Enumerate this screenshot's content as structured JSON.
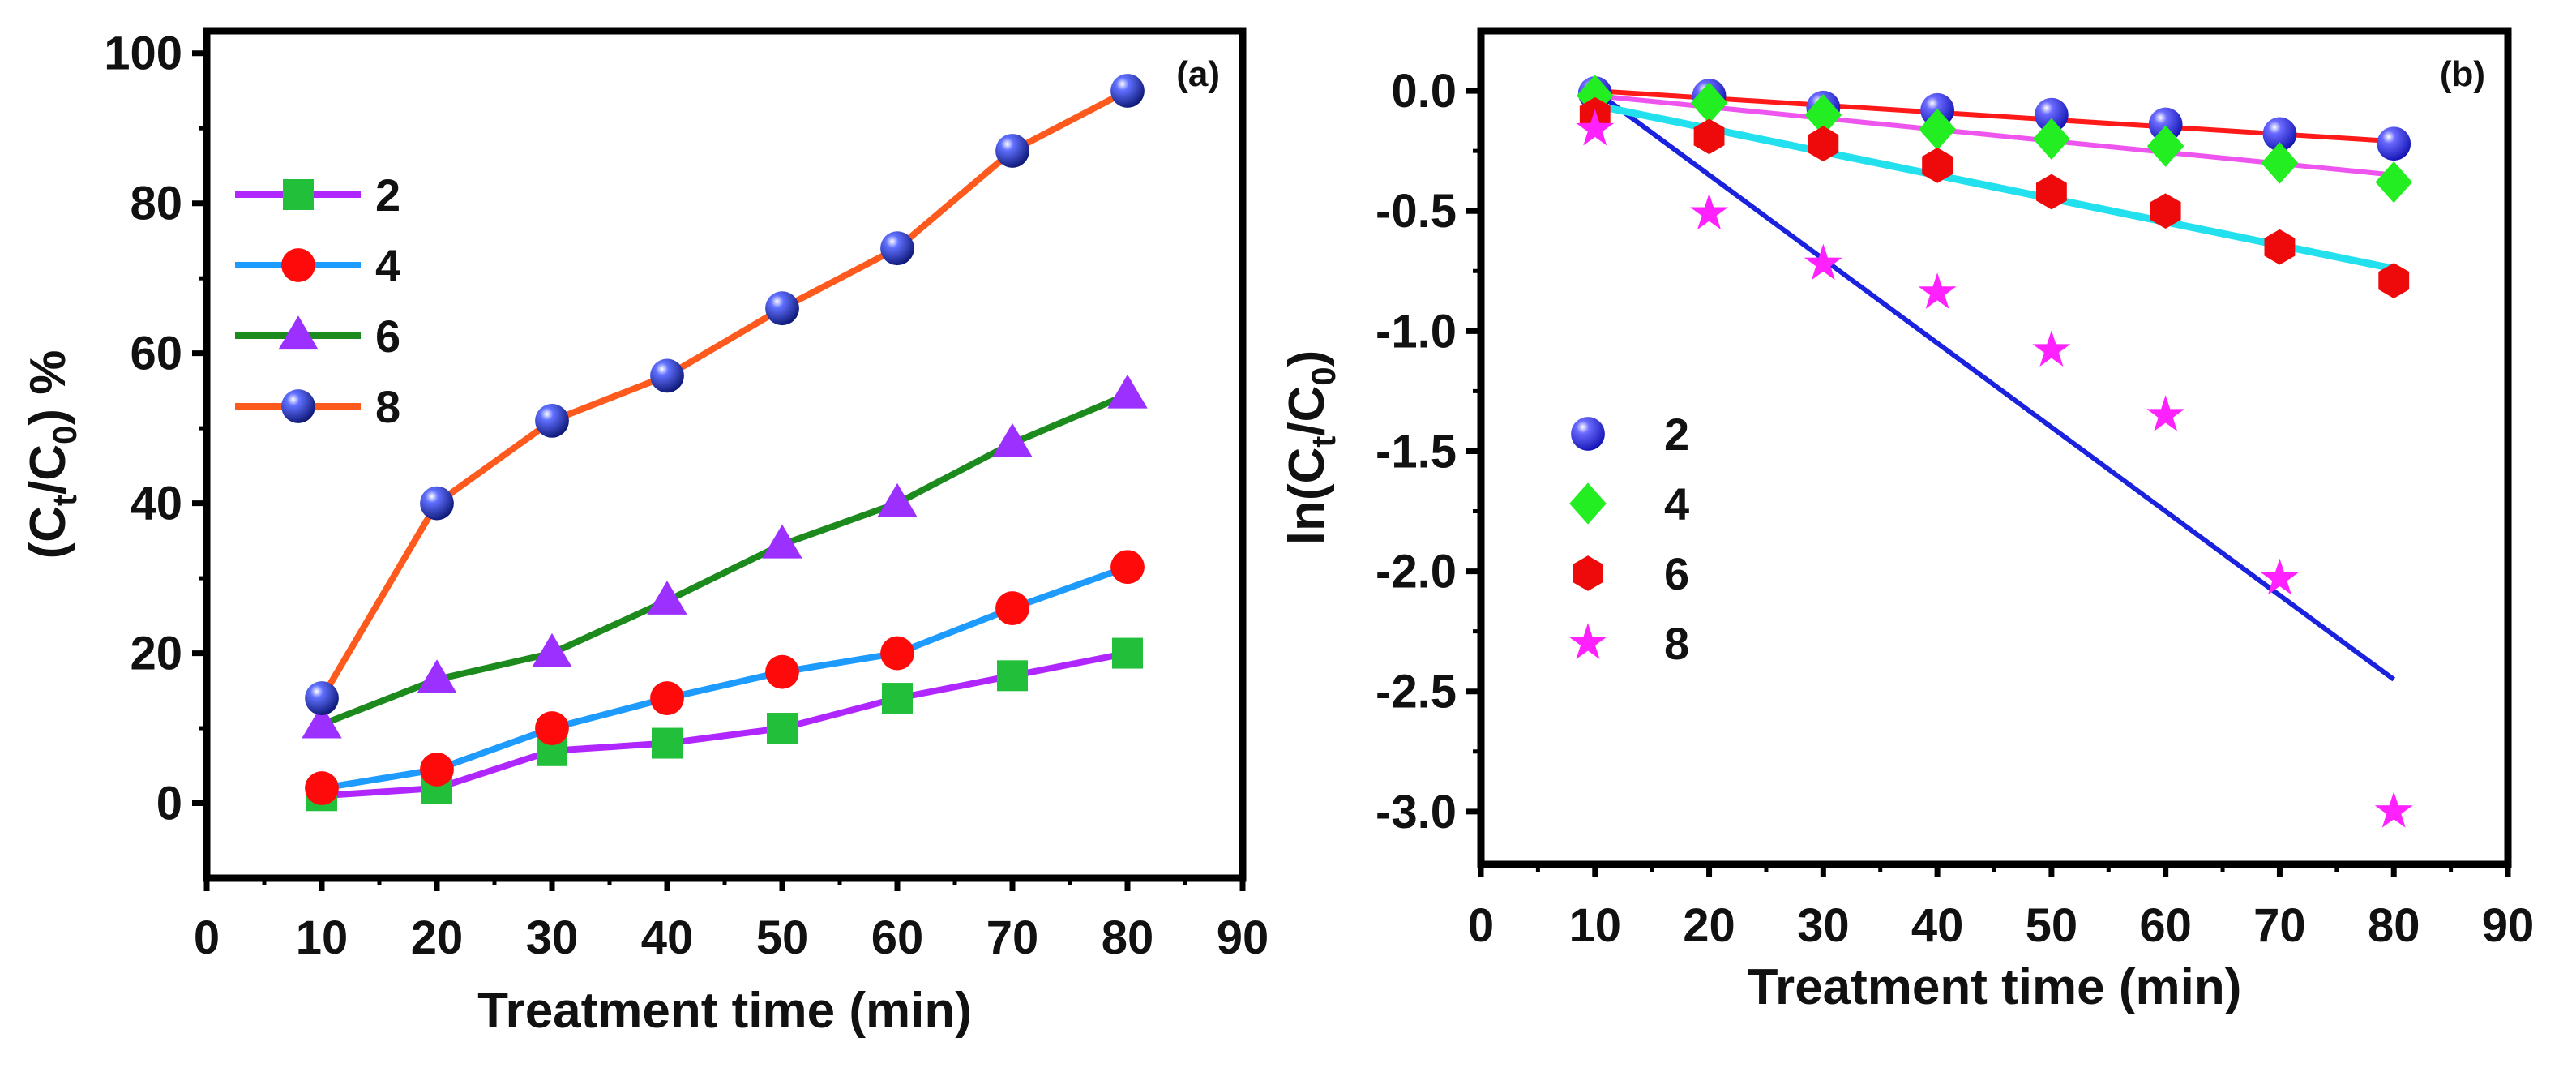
{
  "chart_data": [
    {
      "id": "a",
      "type": "line",
      "panel_label": "(a)",
      "xlabel": "Treatment time (min)",
      "ylabel_parts": [
        "(C",
        "t",
        "/C",
        "0",
        ") %"
      ],
      "xlim": [
        0,
        90
      ],
      "ylim": [
        -10,
        103
      ],
      "xticks": [
        "0",
        "10",
        "20",
        "30",
        "40",
        "50",
        "60",
        "70",
        "80",
        "90"
      ],
      "xtick_values": [
        0,
        10,
        20,
        30,
        40,
        50,
        60,
        70,
        80,
        90
      ],
      "yticks": [
        "0",
        "20",
        "40",
        "60",
        "80",
        "100"
      ],
      "ytick_values": [
        0,
        20,
        40,
        60,
        80,
        100
      ],
      "legend_position": "upper-left",
      "x": [
        10,
        20,
        30,
        40,
        50,
        60,
        70,
        80
      ],
      "series": [
        {
          "name": "2",
          "marker": "square",
          "line_color": "#b026ff",
          "marker_color": "#22c03a",
          "values": [
            1,
            2,
            7,
            8,
            10,
            14,
            17,
            20
          ]
        },
        {
          "name": "4",
          "marker": "circle",
          "line_color": "#1e9bff",
          "marker_color": "#ff0a0a",
          "values": [
            2,
            4.5,
            10,
            14,
            17.5,
            20,
            26,
            31.5
          ]
        },
        {
          "name": "6",
          "marker": "triangle",
          "line_color": "#1c8a1c",
          "marker_color": "#9b30ff",
          "values": [
            10.5,
            16.5,
            20,
            27,
            34.5,
            40,
            48,
            54.5
          ]
        },
        {
          "name": "8",
          "marker": "sphere",
          "line_color": "#ff5a1e",
          "marker_color": "#1a2ab0",
          "values": [
            14,
            40,
            51,
            57,
            66,
            74,
            87,
            95
          ]
        }
      ]
    },
    {
      "id": "b",
      "type": "scatter",
      "panel_label": "(b)",
      "xlabel": "Treatment time (min)",
      "ylabel_parts": [
        "ln(C",
        "t",
        "/C",
        "0",
        ")"
      ],
      "xlim": [
        0,
        90
      ],
      "ylim": [
        -3.22,
        0.25
      ],
      "xticks": [
        "0",
        "10",
        "20",
        "30",
        "40",
        "50",
        "60",
        "70",
        "80",
        "90"
      ],
      "xtick_values": [
        0,
        10,
        20,
        30,
        40,
        50,
        60,
        70,
        80,
        90
      ],
      "yticks": [
        "0.0",
        "-0.5",
        "-1.0",
        "-1.5",
        "-2.0",
        "-2.5",
        "-3.0"
      ],
      "ytick_values": [
        0,
        -0.5,
        -1,
        -1.5,
        -2,
        -2.5,
        -3
      ],
      "legend_position": "center-left",
      "x": [
        10,
        20,
        30,
        40,
        50,
        60,
        70,
        80
      ],
      "series": [
        {
          "name": "2",
          "marker": "sphere",
          "marker_color": "#2a2aff",
          "values": [
            -0.01,
            -0.02,
            -0.07,
            -0.08,
            -0.1,
            -0.14,
            -0.18,
            -0.22
          ],
          "fit_color": "#ff1a1a",
          "fit": [
            [
              10,
              0
            ],
            [
              80,
              -0.21
            ]
          ]
        },
        {
          "name": "4",
          "marker": "diamond",
          "marker_color": "#22ee22",
          "values": [
            -0.02,
            -0.05,
            -0.1,
            -0.16,
            -0.2,
            -0.23,
            -0.3,
            -0.38
          ],
          "fit_color": "#ee55ee",
          "fit": [
            [
              10,
              -0.02
            ],
            [
              80,
              -0.35
            ]
          ]
        },
        {
          "name": "6",
          "marker": "hexagon",
          "marker_color": "#ee0a0a",
          "values": [
            -0.1,
            -0.19,
            -0.22,
            -0.31,
            -0.42,
            -0.5,
            -0.65,
            -0.79
          ],
          "fit_color": "#22e0ee",
          "fit": [
            [
              10,
              -0.06
            ],
            [
              80,
              -0.74
            ]
          ]
        },
        {
          "name": "8",
          "marker": "star",
          "marker_color": "#ff22ff",
          "values": [
            -0.16,
            -0.51,
            -0.72,
            -0.84,
            -1.08,
            -1.35,
            -2.03,
            -3.0
          ],
          "fit_color": "#1a22dd",
          "fit": [
            [
              10,
              0
            ],
            [
              80,
              -2.45
            ]
          ]
        }
      ]
    }
  ]
}
